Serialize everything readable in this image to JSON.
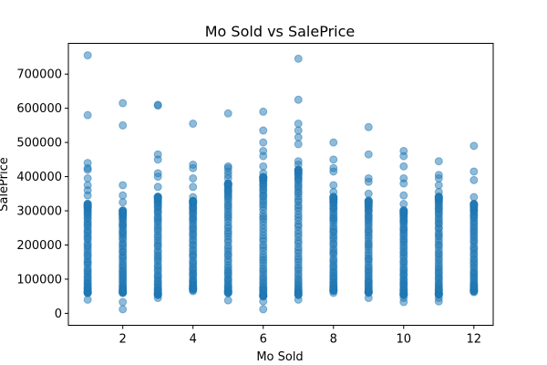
{
  "chart_data": {
    "type": "scatter",
    "title": "Mo Sold vs SalePrice",
    "xlabel": "Mo Sold",
    "ylabel": "SalePrice",
    "xlim": [
      0.45,
      12.55
    ],
    "ylim": [
      -35000,
      790000
    ],
    "x_ticks": [
      2,
      4,
      6,
      8,
      10,
      12
    ],
    "y_ticks": [
      0,
      100000,
      200000,
      300000,
      400000,
      500000,
      600000,
      700000
    ],
    "x_tick_labels": [
      "2",
      "4",
      "6",
      "8",
      "10",
      "12"
    ],
    "y_tick_labels": [
      "0",
      "100000",
      "200000",
      "300000",
      "400000",
      "500000",
      "600000",
      "700000"
    ],
    "grid": false,
    "marker_color": "#1f77b4",
    "marker_alpha": 0.5,
    "series": [
      {
        "name": "SalePrice",
        "points_by_month": [
          {
            "month": 1,
            "dense_range": [
              60000,
              320000
            ],
            "extras": [
              40000,
              345000,
              360000,
              375000,
              395000,
              420000,
              425000,
              440000,
              580000,
              755000
            ]
          },
          {
            "month": 2,
            "dense_range": [
              60000,
              300000
            ],
            "extras": [
              12000,
              33000,
              325000,
              345000,
              375000,
              550000,
              615000
            ]
          },
          {
            "month": 3,
            "dense_range": [
              55000,
              340000
            ],
            "extras": [
              45000,
              370000,
              400000,
              410000,
              450000,
              465000,
              608000,
              610000
            ]
          },
          {
            "month": 4,
            "dense_range": [
              70000,
              330000
            ],
            "extras": [
              65000,
              340000,
              370000,
              395000,
              425000,
              435000,
              555000
            ]
          },
          {
            "month": 5,
            "dense_range": [
              60000,
              380000
            ],
            "extras": [
              38000,
              395000,
              405000,
              415000,
              425000,
              430000,
              585000
            ]
          },
          {
            "month": 6,
            "dense_range": [
              50000,
              400000
            ],
            "extras": [
              12000,
              35000,
              410000,
              430000,
              460000,
              475000,
              500000,
              535000,
              590000
            ]
          },
          {
            "month": 7,
            "dense_range": [
              55000,
              420000
            ],
            "extras": [
              40000,
              435000,
              445000,
              495000,
              515000,
              535000,
              555000,
              625000,
              745000
            ]
          },
          {
            "month": 8,
            "dense_range": [
              65000,
              340000
            ],
            "extras": [
              60000,
              355000,
              375000,
              415000,
              425000,
              450000,
              500000
            ]
          },
          {
            "month": 9,
            "dense_range": [
              60000,
              330000
            ],
            "extras": [
              45000,
              350000,
              385000,
              395000,
              465000,
              545000
            ]
          },
          {
            "month": 10,
            "dense_range": [
              55000,
              300000
            ],
            "extras": [
              33000,
              45000,
              320000,
              345000,
              380000,
              395000,
              430000,
              460000,
              475000
            ]
          },
          {
            "month": 11,
            "dense_range": [
              55000,
              340000
            ],
            "extras": [
              35000,
              45000,
              355000,
              375000,
              395000,
              405000,
              445000
            ]
          },
          {
            "month": 12,
            "dense_range": [
              65000,
              320000
            ],
            "extras": [
              62000,
              340000,
              390000,
              415000,
              490000
            ]
          }
        ]
      }
    ]
  }
}
